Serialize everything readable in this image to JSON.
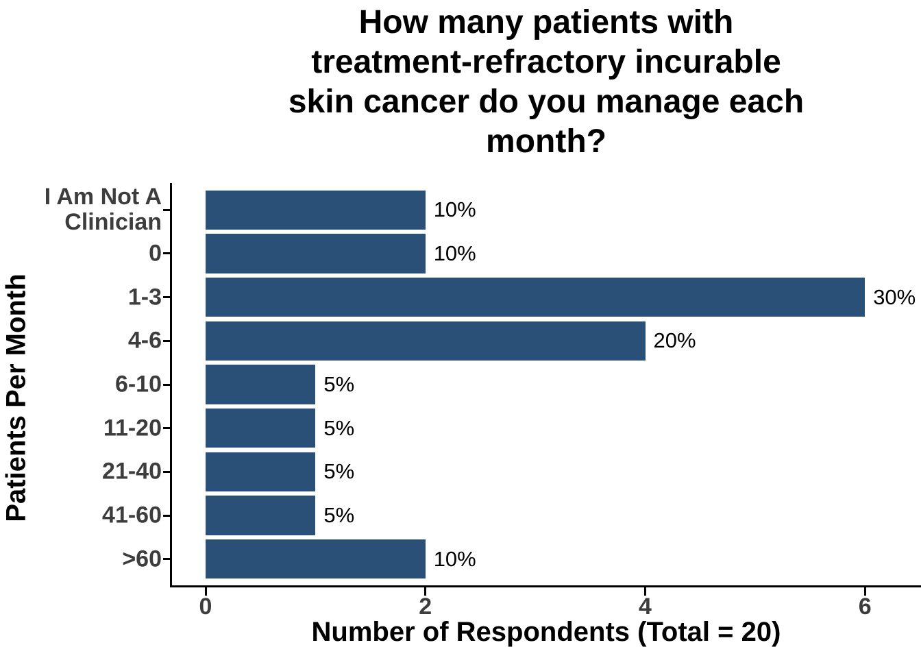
{
  "chart_data": {
    "type": "bar",
    "orientation": "horizontal",
    "title": "How many patients with treatment-refractory incurable skin cancer do you manage each month?",
    "title_lines": [
      "How many patients with",
      "treatment-refractory incurable",
      "skin cancer do you manage each",
      "month?"
    ],
    "xlabel": "Number of Respondents (Total = 20)",
    "ylabel": "Patients Per Month",
    "categories": [
      "I Am Not A Clinician",
      "0",
      "1-3",
      "4-6",
      "6-10",
      "11-20",
      "21-40",
      "41-60",
      ">60"
    ],
    "category_display_lines": [
      [
        "I Am Not A",
        "Clinician"
      ],
      [
        "0"
      ],
      [
        "1-3"
      ],
      [
        "4-6"
      ],
      [
        "6-10"
      ],
      [
        "11-20"
      ],
      [
        "21-40"
      ],
      [
        "41-60"
      ],
      [
        ">60"
      ]
    ],
    "values": [
      2,
      2,
      6,
      4,
      1,
      1,
      1,
      1,
      2
    ],
    "value_labels": [
      "10%",
      "10%",
      "30%",
      "20%",
      "5%",
      "5%",
      "5%",
      "5%",
      "10%"
    ],
    "total_respondents": 20,
    "x_ticks": [
      0,
      2,
      4,
      6
    ],
    "xlim": [
      0,
      6.51
    ],
    "grid": false,
    "legend": false,
    "colors": {
      "bar": "#2B5078",
      "tick_label": "#3D3D3D",
      "axis": "#000000",
      "title": "#000000",
      "background": "#FFFFFF"
    }
  }
}
